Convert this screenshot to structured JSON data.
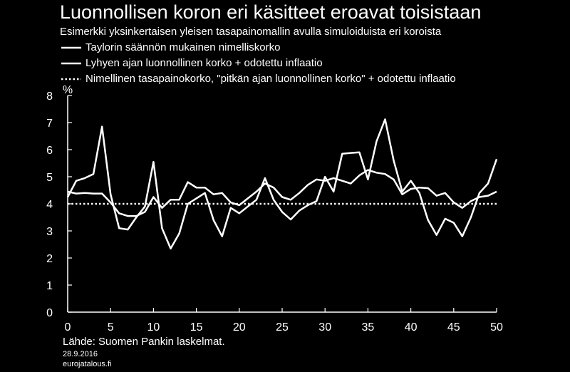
{
  "title": "Luonnollisen koron eri käsitteet eroavat toisistaan",
  "subtitle": "Esimerkki yksinkertaisen yleisen tasapainomallin avulla simuloiduista eri koroista",
  "legend": [
    {
      "label": "Taylorin säännön mukainen nimelliskorko",
      "style": "solid"
    },
    {
      "label": "Lyhyen ajan luonnollinen korko + odotettu inflaatio",
      "style": "solid"
    },
    {
      "label": "Nimellinen tasapainokorko, \"pitkän ajan luonnollinen korko\" + odotettu inflaatio",
      "style": "dotted"
    }
  ],
  "source": "Lähde: Suomen Pankin laskelmat.",
  "date": "28.9.2016",
  "site": "eurojatalous.fi",
  "colors": {
    "background": "#000000",
    "line": "#ffffff"
  },
  "chart_data": {
    "type": "line",
    "ylabel": "%",
    "ylim": [
      0,
      8
    ],
    "xlim": [
      0,
      50
    ],
    "yticks": [
      0,
      1,
      2,
      3,
      4,
      5,
      6,
      7,
      8
    ],
    "xticks": [
      0,
      5,
      10,
      15,
      20,
      25,
      30,
      35,
      40,
      45,
      50
    ],
    "grid": false,
    "legend_position": "top-left",
    "x": [
      0,
      1,
      2,
      3,
      4,
      5,
      6,
      7,
      8,
      9,
      10,
      11,
      12,
      13,
      14,
      15,
      16,
      17,
      18,
      19,
      20,
      21,
      22,
      23,
      24,
      25,
      26,
      27,
      28,
      29,
      30,
      31,
      32,
      33,
      34,
      35,
      36,
      37,
      38,
      39,
      40,
      41,
      42,
      43,
      44,
      45,
      46,
      47,
      48,
      49,
      50
    ],
    "series": [
      {
        "name": "Taylorin säännön mukainen nimelliskorko",
        "style": "solid",
        "values": [
          4.45,
          4.38,
          4.4,
          4.38,
          4.38,
          4.05,
          3.65,
          3.55,
          3.55,
          3.7,
          4.25,
          3.85,
          4.15,
          4.15,
          4.8,
          4.6,
          4.6,
          4.35,
          4.4,
          4.05,
          3.95,
          4.2,
          4.45,
          4.75,
          4.6,
          4.25,
          4.15,
          4.4,
          4.7,
          4.9,
          4.85,
          4.95,
          4.85,
          4.75,
          5.05,
          5.25,
          5.15,
          5.1,
          4.9,
          4.35,
          4.55,
          4.6,
          4.58,
          4.3,
          4.4,
          4.05,
          3.85,
          4.1,
          4.25,
          4.3,
          4.45
        ]
      },
      {
        "name": "Lyhyen ajan luonnollinen korko + odotettu inflaatio",
        "style": "solid",
        "values": [
          4.25,
          4.85,
          4.95,
          5.1,
          6.85,
          4.35,
          3.1,
          3.05,
          3.5,
          3.9,
          5.55,
          3.1,
          2.35,
          2.9,
          4.0,
          4.2,
          4.4,
          3.4,
          2.8,
          3.85,
          3.65,
          3.9,
          4.15,
          4.95,
          4.15,
          3.7,
          3.42,
          3.75,
          3.95,
          4.1,
          5.0,
          4.45,
          5.85,
          5.88,
          5.9,
          4.9,
          6.3,
          7.12,
          5.6,
          4.45,
          4.85,
          4.4,
          3.4,
          2.85,
          3.45,
          3.3,
          2.8,
          3.5,
          4.4,
          4.75,
          5.65
        ]
      },
      {
        "name": "Nimellinen tasapainokorko, \"pitkän ajan luonnollinen korko\" + odotettu inflaatio",
        "style": "dotted",
        "values": [
          4,
          4,
          4,
          4,
          4,
          4,
          4,
          4,
          4,
          4,
          4,
          4,
          4,
          4,
          4,
          4,
          4,
          4,
          4,
          4,
          4,
          4,
          4,
          4,
          4,
          4,
          4,
          4,
          4,
          4,
          4,
          4,
          4,
          4,
          4,
          4,
          4,
          4,
          4,
          4,
          4,
          4,
          4,
          4,
          4,
          4,
          4,
          4,
          4,
          4,
          4
        ]
      }
    ]
  }
}
